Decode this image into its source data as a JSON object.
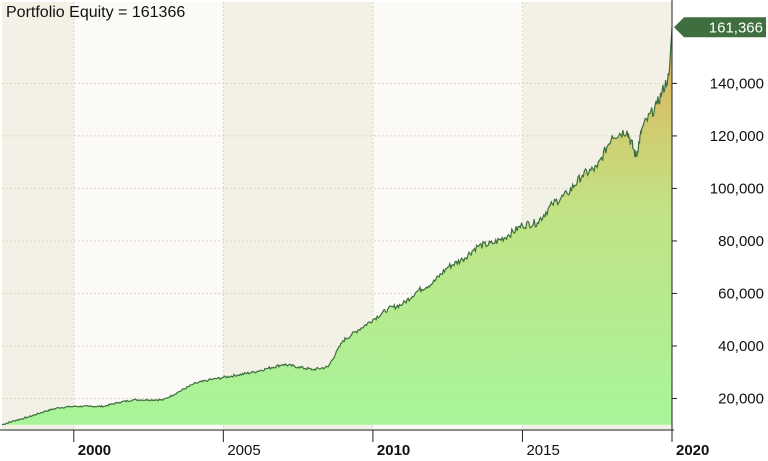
{
  "title": "Portfolio Equity = 161366",
  "last_value_label": "161,366",
  "colors": {
    "band_light": "#fbfaf6",
    "band_dark": "#f3f1e6",
    "line": "#3e6e3e",
    "fill_bottom": "#a8f59a",
    "fill_mid": "#c2e284",
    "fill_top": "#e3ae58",
    "last_label_bg": "#3f6f3f"
  },
  "chart_data": {
    "type": "area",
    "title": "Portfolio Equity = 161366",
    "xlabel": "",
    "ylabel": "",
    "xlim": [
      1997.6,
      2020.0
    ],
    "ylim": [
      8000,
      171000
    ],
    "grid": true,
    "yticks": [
      20000,
      40000,
      60000,
      80000,
      100000,
      120000,
      140000
    ],
    "ytick_labels": [
      "20,000",
      "40,000",
      "60,000",
      "80,000",
      "100,000",
      "120,000",
      "140,000"
    ],
    "xticks": [
      2000,
      2005,
      2010,
      2015,
      2020
    ],
    "xtick_labels": [
      "2000",
      "2005",
      "2010",
      "2015",
      "2020"
    ],
    "xtick_bold": [
      true,
      false,
      true,
      false,
      true
    ],
    "last_value": 161366,
    "series": [
      {
        "x": [
          1997.6,
          1998.0,
          1998.5,
          1999.0,
          1999.5,
          2000.0,
          2000.5,
          2001.0,
          2001.5,
          2002.0,
          2002.5,
          2003.0,
          2003.5,
          2004.0,
          2004.5,
          2005.0,
          2005.5,
          2006.0,
          2006.5,
          2007.0,
          2007.5,
          2008.0,
          2008.5,
          2009.0,
          2009.5,
          2010.0,
          2010.5,
          2011.0,
          2011.5,
          2012.0,
          2012.5,
          2013.0,
          2013.5,
          2014.0,
          2014.5,
          2015.0,
          2015.5,
          2016.0,
          2016.5,
          2017.0,
          2017.5,
          2018.0,
          2018.5,
          2018.8,
          2019.0,
          2019.5,
          2019.9,
          2020.0
        ],
        "y": [
          10000,
          11500,
          13000,
          15000,
          16500,
          17000,
          17000,
          17000,
          18500,
          19500,
          19500,
          19500,
          22500,
          25500,
          27000,
          28000,
          29000,
          30000,
          31500,
          33000,
          32000,
          31000,
          32000,
          42000,
          46000,
          50000,
          54000,
          56000,
          61000,
          64000,
          70000,
          73000,
          78000,
          79000,
          82000,
          86000,
          87000,
          94000,
          98000,
          105000,
          108000,
          120000,
          122000,
          112000,
          123000,
          132000,
          143000,
          161366
        ]
      }
    ]
  }
}
